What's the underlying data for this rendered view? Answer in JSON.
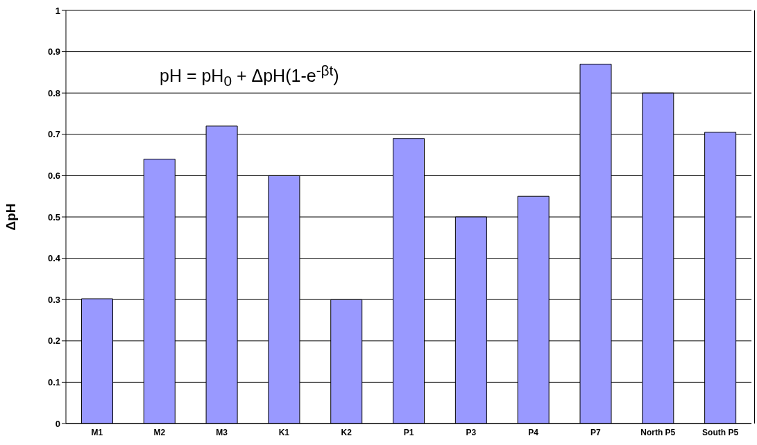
{
  "chart_data": {
    "type": "bar",
    "ylabel": "ΔpH",
    "categories": [
      "M1",
      "M2",
      "M3",
      "K1",
      "K2",
      "P1",
      "P3",
      "P4",
      "P7",
      "North P5",
      "South P5"
    ],
    "values": [
      0.302,
      0.64,
      0.72,
      0.6,
      0.3,
      0.69,
      0.5,
      0.55,
      0.87,
      0.8,
      0.705
    ],
    "color": "#9999ff",
    "ylim": [
      0,
      1
    ],
    "yticks": [
      0,
      0.1,
      0.2,
      0.3,
      0.4,
      0.5,
      0.6,
      0.7,
      0.8,
      0.9,
      1
    ],
    "grid": "y",
    "annotations": [
      "pH = pH$_{0}$ + ΔpH(1-e$^{-βt}$)"
    ]
  }
}
